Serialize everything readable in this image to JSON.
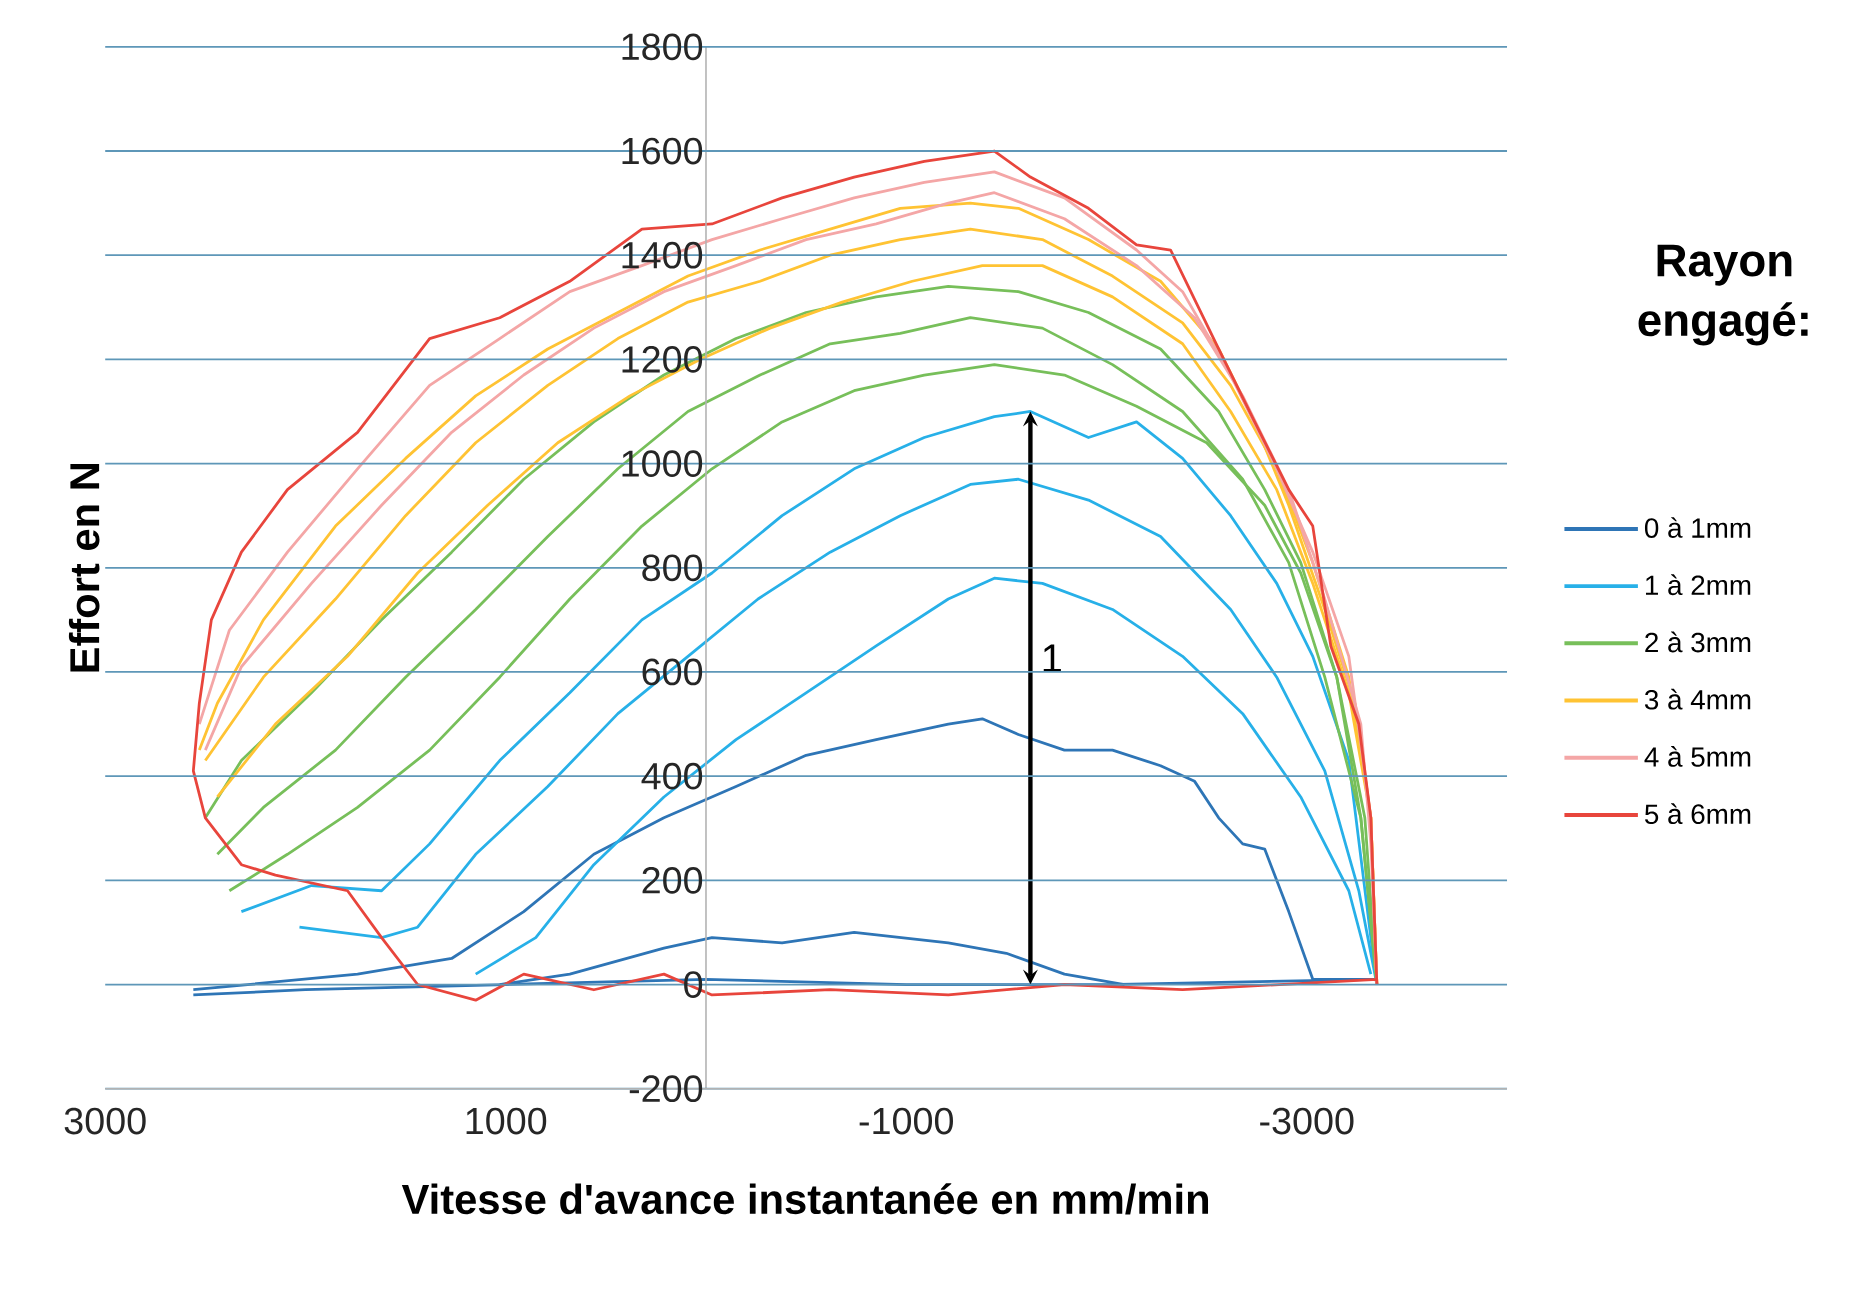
{
  "chart_data": {
    "type": "line",
    "xlabel": "Vitesse d'avance instantanée en mm/min",
    "ylabel": "Effort en N",
    "legend_title": "Rayon engagé:",
    "legend": "right",
    "grid": "y",
    "xlim": [
      3000,
      -4000
    ],
    "xticks": [
      3000,
      1000,
      -1000,
      -3000
    ],
    "ylim": [
      -200,
      1800
    ],
    "yticks": [
      -200,
      0,
      200,
      400,
      600,
      800,
      1000,
      1200,
      1400,
      1600,
      1800
    ],
    "annotations": [
      "1"
    ],
    "series": [
      {
        "name": "0 à 1mm",
        "color": "#2e75b6",
        "x": [
          2560,
          1740,
          1270,
          910,
          560,
          210,
          -150,
          -500,
          -850,
          -1210,
          -1380,
          -1560,
          -1790,
          -2030,
          -2270,
          -2440,
          -2560,
          -2680,
          -2790,
          -2910,
          -3030,
          -3350
        ],
        "values": [
          -10,
          20,
          50,
          140,
          250,
          320,
          380,
          440,
          470,
          500,
          510,
          480,
          450,
          450,
          420,
          390,
          320,
          270,
          260,
          140,
          10,
          10
        ]
      },
      {
        "color": "#2e75b6",
        "x": [
          1030,
          680,
          210,
          -30,
          -380,
          -740,
          -1210,
          -1500,
          -1790,
          -2090
        ],
        "values": [
          0,
          20,
          70,
          90,
          80,
          100,
          80,
          60,
          20,
          0
        ]
      },
      {
        "color": "#2e75b6",
        "x": [
          2560,
          2000,
          1000,
          0,
          -1000,
          -2000,
          -3350
        ],
        "values": [
          -20,
          -10,
          0,
          10,
          0,
          0,
          10
        ]
      },
      {
        "name": "1 à 2mm",
        "color": "#27b0e8",
        "x": [
          2320,
          1970,
          1620,
          1380,
          1030,
          680,
          320,
          -30,
          -380,
          -740,
          -1090,
          -1440,
          -1620,
          -1910,
          -2150,
          -2380,
          -2620,
          -2850,
          -3030,
          -3210,
          -3320,
          -3350
        ],
        "values": [
          140,
          190,
          180,
          270,
          430,
          560,
          700,
          790,
          900,
          990,
          1050,
          1090,
          1100,
          1050,
          1080,
          1010,
          900,
          770,
          630,
          430,
          90,
          0
        ]
      },
      {
        "color": "#27b0e8",
        "x": [
          2030,
          1620,
          1440,
          1150,
          790,
          440,
          90,
          -260,
          -620,
          -970,
          -1320,
          -1560,
          -1910,
          -2270,
          -2620,
          -2850,
          -3090,
          -3260,
          -3350
        ],
        "values": [
          110,
          90,
          110,
          250,
          380,
          520,
          630,
          740,
          830,
          900,
          960,
          970,
          930,
          860,
          720,
          590,
          410,
          180,
          0
        ]
      },
      {
        "color": "#27b0e8",
        "x": [
          1150,
          850,
          560,
          210,
          -150,
          -500,
          -850,
          -1210,
          -1440,
          -1680,
          -2030,
          -2380,
          -2680,
          -2970,
          -3210,
          -3320
        ],
        "values": [
          20,
          90,
          230,
          360,
          470,
          560,
          650,
          740,
          780,
          770,
          720,
          630,
          520,
          360,
          180,
          20
        ]
      },
      {
        "name": "2 à 3mm",
        "color": "#77bf5a",
        "x": [
          2500,
          2320,
          1970,
          1620,
          1270,
          910,
          560,
          210,
          -150,
          -500,
          -850,
          -1210,
          -1560,
          -1910,
          -2270,
          -2560,
          -2790,
          -2970,
          -3150,
          -3290,
          -3350
        ],
        "values": [
          320,
          430,
          560,
          700,
          830,
          970,
          1080,
          1170,
          1240,
          1290,
          1320,
          1340,
          1330,
          1290,
          1220,
          1100,
          950,
          810,
          590,
          320,
          0
        ]
      },
      {
        "color": "#77bf5a",
        "x": [
          2440,
          2210,
          1850,
          1500,
          1150,
          790,
          440,
          90,
          -270,
          -620,
          -970,
          -1320,
          -1680,
          -2030,
          -2380,
          -2680,
          -2910,
          -3090,
          -3270,
          -3350
        ],
        "values": [
          250,
          340,
          450,
          590,
          720,
          860,
          990,
          1100,
          1170,
          1230,
          1250,
          1280,
          1260,
          1190,
          1100,
          970,
          810,
          590,
          320,
          0
        ]
      },
      {
        "color": "#77bf5a",
        "x": [
          2380,
          2090,
          1740,
          1380,
          1030,
          680,
          320,
          -30,
          -380,
          -740,
          -1090,
          -1440,
          -1790,
          -2150,
          -2500,
          -2790,
          -2970,
          -3150,
          -3270,
          -3350
        ],
        "values": [
          180,
          250,
          340,
          450,
          590,
          740,
          880,
          990,
          1080,
          1140,
          1170,
          1190,
          1170,
          1110,
          1040,
          920,
          790,
          590,
          320,
          0
        ]
      },
      {
        "name": "3 à 4mm",
        "color": "#ffc333",
        "x": [
          2530,
          2440,
          2210,
          1850,
          1500,
          1150,
          790,
          440,
          90,
          -270,
          -620,
          -970,
          -1320,
          -1560,
          -1910,
          -2270,
          -2560,
          -2740,
          -2910,
          -3090,
          -3240,
          -3320,
          -3350
        ],
        "values": [
          450,
          540,
          700,
          880,
          1010,
          1130,
          1220,
          1290,
          1360,
          1410,
          1450,
          1490,
          1500,
          1490,
          1430,
          1350,
          1220,
          1080,
          920,
          720,
          540,
          320,
          0
        ]
      },
      {
        "color": "#ffc333",
        "x": [
          2500,
          2210,
          1850,
          1500,
          1150,
          790,
          440,
          90,
          -270,
          -620,
          -970,
          -1320,
          -1680,
          -2030,
          -2380,
          -2620,
          -2850,
          -3030,
          -3210,
          -3320,
          -3350
        ],
        "values": [
          430,
          590,
          740,
          900,
          1040,
          1150,
          1240,
          1310,
          1350,
          1400,
          1430,
          1450,
          1430,
          1360,
          1270,
          1150,
          990,
          810,
          590,
          320,
          0
        ]
      },
      {
        "color": "#ffc333",
        "x": [
          2440,
          2150,
          1790,
          1440,
          1090,
          740,
          380,
          30,
          -320,
          -680,
          -1030,
          -1380,
          -1680,
          -2030,
          -2380,
          -2620,
          -2850,
          -3030,
          -3210,
          -3320,
          -3350
        ],
        "values": [
          360,
          500,
          630,
          790,
          920,
          1040,
          1130,
          1200,
          1260,
          1310,
          1350,
          1380,
          1380,
          1320,
          1230,
          1100,
          950,
          770,
          560,
          320,
          0
        ]
      },
      {
        "name": "4 à 5mm",
        "color": "#f4a6a6",
        "x": [
          2530,
          2380,
          2090,
          1740,
          1380,
          1030,
          680,
          320,
          -30,
          -380,
          -740,
          -1090,
          -1440,
          -1790,
          -2150,
          -2380,
          -2620,
          -2850,
          -3030,
          -3210,
          -3320,
          -3350
        ],
        "values": [
          500,
          680,
          830,
          990,
          1150,
          1240,
          1330,
          1380,
          1430,
          1470,
          1510,
          1540,
          1560,
          1510,
          1410,
          1330,
          1170,
          990,
          830,
          630,
          320,
          0
        ]
      },
      {
        "color": "#f4a6a6",
        "x": [
          2500,
          2320,
          1970,
          1620,
          1270,
          910,
          560,
          210,
          -150,
          -500,
          -850,
          -1210,
          -1440,
          -1790,
          -2150,
          -2440,
          -2680,
          -2910,
          -3090,
          -3270,
          -3320,
          -3350
        ],
        "values": [
          450,
          610,
          770,
          920,
          1060,
          1170,
          1260,
          1330,
          1380,
          1430,
          1460,
          1500,
          1520,
          1470,
          1380,
          1280,
          1130,
          950,
          740,
          500,
          270,
          0
        ]
      },
      {
        "name": "5 à 6mm",
        "color": "#e8453c",
        "x": [
          -3350,
          -2380,
          -1790,
          -1210,
          -620,
          -30,
          210,
          560,
          910,
          1150,
          1440,
          1620,
          1790,
          2150,
          2320,
          2500,
          2560,
          2530,
          2470,
          2320,
          2090,
          1740,
          1380,
          1030,
          680,
          320,
          -30,
          -380,
          -740,
          -1090,
          -1440,
          -1620,
          -1910,
          -2150,
          -2320,
          -2560,
          -2740,
          -2910,
          -3030,
          -3120,
          -3260,
          -3320,
          -3350
        ],
        "values": [
          10,
          -10,
          0,
          -20,
          -10,
          -20,
          20,
          -10,
          20,
          -30,
          0,
          90,
          180,
          210,
          230,
          320,
          410,
          540,
          700,
          830,
          950,
          1060,
          1240,
          1280,
          1350,
          1450,
          1460,
          1510,
          1550,
          1580,
          1600,
          1550,
          1490,
          1420,
          1410,
          1220,
          1080,
          950,
          880,
          650,
          500,
          320,
          0
        ]
      }
    ]
  }
}
